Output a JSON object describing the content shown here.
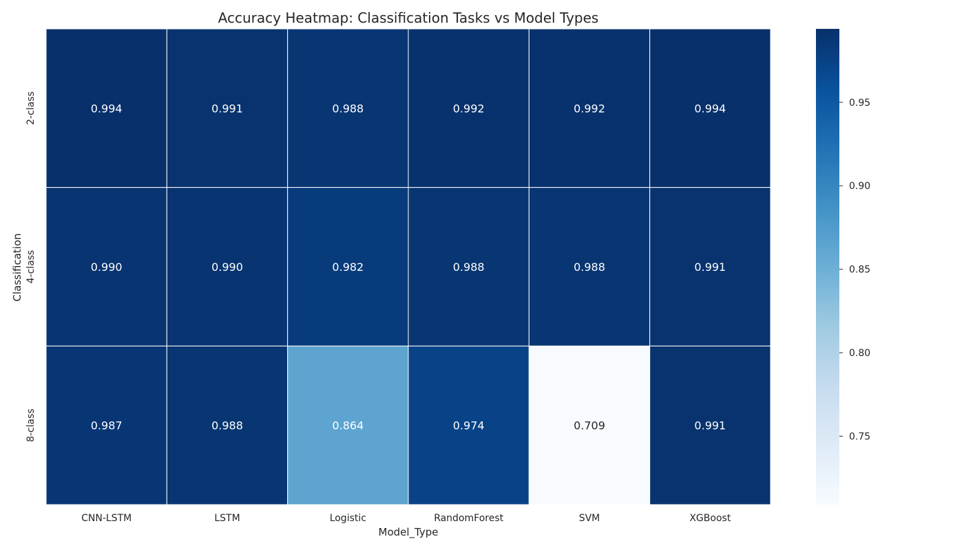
{
  "chart_data": {
    "type": "heatmap",
    "title": "Accuracy Heatmap: Classification Tasks vs Model Types",
    "xlabel": "Model_Type",
    "ylabel": "Classification",
    "x_categories": [
      "CNN-LSTM",
      "LSTM",
      "Logistic",
      "RandomForest",
      "SVM",
      "XGBoost"
    ],
    "y_categories": [
      "2-class",
      "4-class",
      "8-class"
    ],
    "values": [
      [
        0.994,
        0.991,
        0.988,
        0.992,
        0.992,
        0.994
      ],
      [
        0.99,
        0.99,
        0.982,
        0.988,
        0.988,
        0.991
      ],
      [
        0.987,
        0.988,
        0.864,
        0.974,
        0.709,
        0.991
      ]
    ],
    "value_labels": [
      [
        "0.994",
        "0.991",
        "0.988",
        "0.992",
        "0.992",
        "0.994"
      ],
      [
        "0.990",
        "0.990",
        "0.982",
        "0.988",
        "0.988",
        "0.991"
      ],
      [
        "0.987",
        "0.988",
        "0.864",
        "0.974",
        "0.709",
        "0.991"
      ]
    ],
    "colormap": "Blues",
    "vmin": 0.709,
    "vmax": 0.994,
    "colorbar_ticks": [
      0.75,
      0.8,
      0.85,
      0.9,
      0.95
    ],
    "colorbar_tick_labels": [
      "0.75",
      "0.80",
      "0.85",
      "0.90",
      "0.95"
    ]
  }
}
